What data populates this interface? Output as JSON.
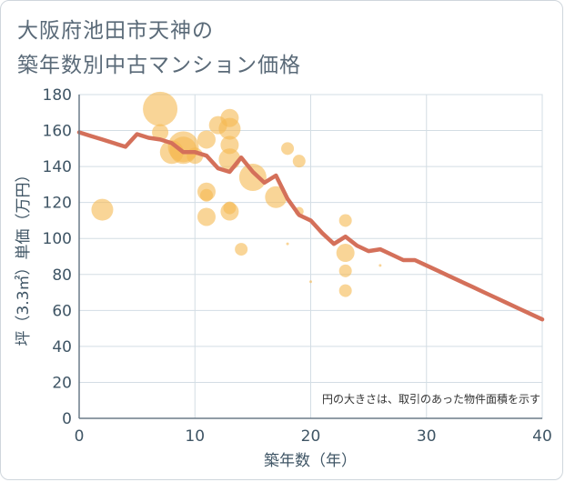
{
  "title_lines": [
    "大阪府池田市天神の",
    "築年数別中古マンション価格"
  ],
  "chart_data": {
    "type": "scatter",
    "title": "大阪府池田市天神の築年数別中古マンション価格",
    "xlabel": "築年数（年）",
    "ylabel": "坪（3.3㎡）単価（万円）",
    "xlim": [
      0,
      40
    ],
    "ylim": [
      0,
      180
    ],
    "x_ticks": [
      "0",
      "10",
      "20",
      "30",
      "40"
    ],
    "y_ticks": [
      "0",
      "20",
      "40",
      "60",
      "80",
      "100",
      "120",
      "140",
      "160",
      "180"
    ],
    "grid": true,
    "annotation": "円の大きさは、取引のあった物件面積を示す",
    "colors": {
      "bubble": "#f5b951",
      "line": "#d4705a",
      "grid": "#d3dde4",
      "axis": "#6b7b88"
    },
    "series": [
      {
        "name": "transactions",
        "kind": "bubble",
        "points": [
          {
            "x": 2,
            "y": 116,
            "size": 12
          },
          {
            "x": 7,
            "y": 172,
            "size": 19
          },
          {
            "x": 7,
            "y": 159,
            "size": 9
          },
          {
            "x": 8,
            "y": 148,
            "size": 13
          },
          {
            "x": 9,
            "y": 151,
            "size": 17
          },
          {
            "x": 9,
            "y": 149,
            "size": 15
          },
          {
            "x": 10,
            "y": 146,
            "size": 9
          },
          {
            "x": 11,
            "y": 155,
            "size": 10
          },
          {
            "x": 11,
            "y": 126,
            "size": 10
          },
          {
            "x": 11,
            "y": 124,
            "size": 7
          },
          {
            "x": 11,
            "y": 112,
            "size": 10
          },
          {
            "x": 12,
            "y": 163,
            "size": 10
          },
          {
            "x": 13,
            "y": 167,
            "size": 10
          },
          {
            "x": 13,
            "y": 161,
            "size": 12
          },
          {
            "x": 13,
            "y": 152,
            "size": 10
          },
          {
            "x": 13,
            "y": 144,
            "size": 12
          },
          {
            "x": 13,
            "y": 117,
            "size": 7
          },
          {
            "x": 13,
            "y": 115,
            "size": 10
          },
          {
            "x": 14,
            "y": 94,
            "size": 7
          },
          {
            "x": 15,
            "y": 134,
            "size": 15
          },
          {
            "x": 17,
            "y": 123,
            "size": 12
          },
          {
            "x": 18,
            "y": 150,
            "size": 7
          },
          {
            "x": 18,
            "y": 97,
            "size": 1.5
          },
          {
            "x": 19,
            "y": 143,
            "size": 7
          },
          {
            "x": 19,
            "y": 115,
            "size": 5
          },
          {
            "x": 20,
            "y": 76,
            "size": 1.5
          },
          {
            "x": 23,
            "y": 110,
            "size": 7
          },
          {
            "x": 23,
            "y": 92,
            "size": 10
          },
          {
            "x": 23,
            "y": 82,
            "size": 7
          },
          {
            "x": 23,
            "y": 71,
            "size": 7
          },
          {
            "x": 26,
            "y": 85,
            "size": 1.5
          }
        ]
      },
      {
        "name": "average",
        "kind": "line",
        "x": [
          0,
          1,
          2,
          3,
          4,
          5,
          6,
          7,
          8,
          9,
          10,
          11,
          12,
          13,
          14,
          15,
          16,
          17,
          18,
          19,
          20,
          21,
          22,
          23,
          24,
          25,
          26,
          27,
          28,
          29,
          30,
          31,
          32,
          33,
          34,
          35,
          36,
          37,
          38,
          39,
          40
        ],
        "values": [
          159,
          157,
          155,
          153,
          151,
          158,
          156,
          155,
          153,
          148,
          148,
          146,
          139,
          137,
          145,
          137,
          131,
          135,
          122,
          113,
          110,
          103,
          97,
          101,
          96,
          93,
          94,
          91,
          88,
          88,
          85,
          82,
          79,
          76,
          73,
          70,
          67,
          64,
          61,
          58,
          55
        ]
      }
    ]
  }
}
